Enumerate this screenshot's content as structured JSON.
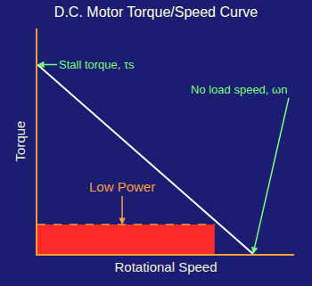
{
  "chart_data": {
    "type": "line",
    "title": "D.C. Motor Torque/Speed Curve",
    "x_label": "Rotational Speed",
    "y_label": "Torque",
    "xlim": [
      0,
      100
    ],
    "ylim": [
      0,
      100
    ],
    "tick_labels": false,
    "grid": false,
    "series": [
      {
        "type": "area",
        "color": "#ff2a2a",
        "line_style": "dashed",
        "x": [
          0,
          69
        ],
        "values": [
          13,
          13
        ]
      },
      {
        "type": "line",
        "color": "#ffffff",
        "line_style": "solid",
        "x": [
          0,
          84
        ],
        "values": [
          84,
          0
        ]
      }
    ],
    "annotations": [
      {
        "text": "Stall torque, τs",
        "x": 0,
        "y": 84
      },
      {
        "text": "No load speed, ωn",
        "x": 84,
        "y": 0
      },
      {
        "text": "Low Power",
        "x": 33,
        "y": 13
      }
    ]
  }
}
